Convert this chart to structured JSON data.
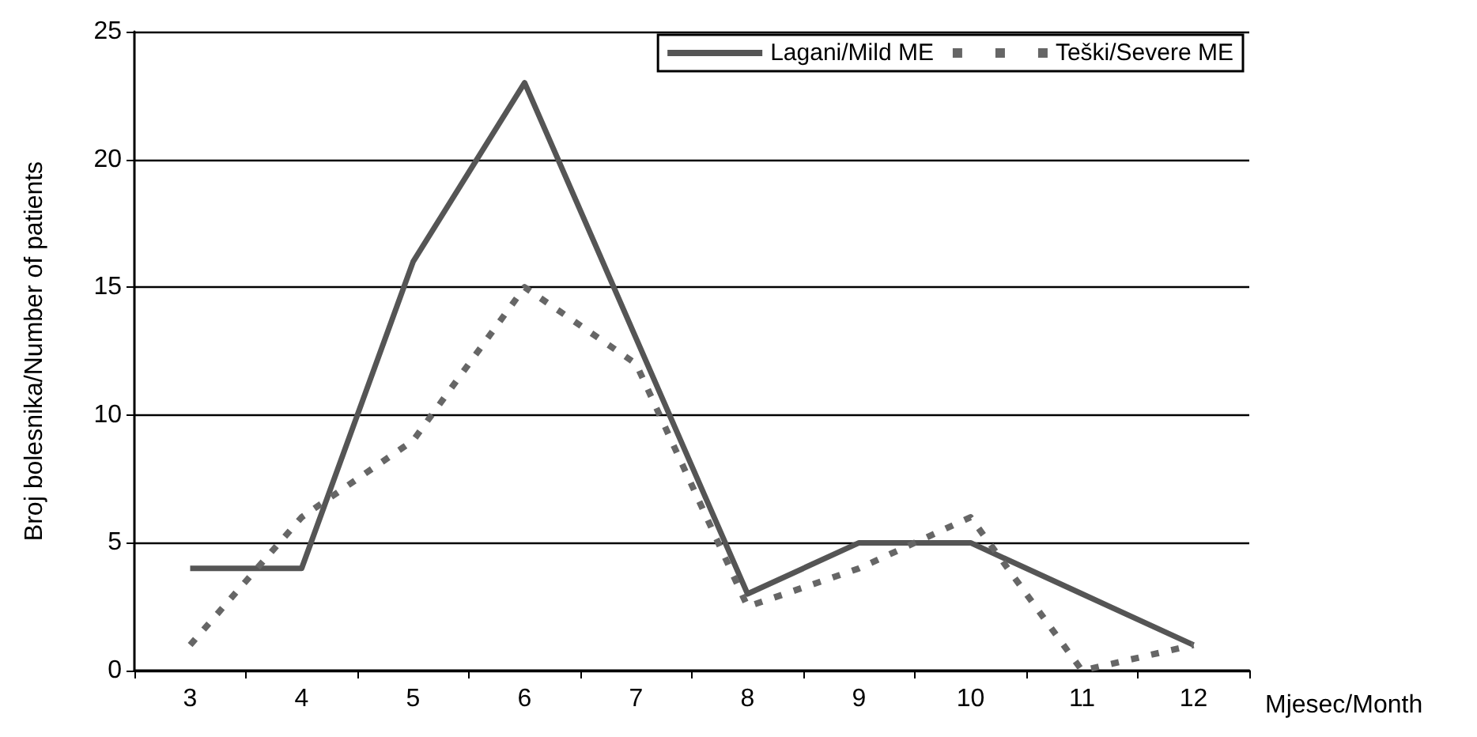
{
  "chart_data": {
    "type": "line",
    "xlabel": "Mjesec/Month",
    "ylabel": "Broj bolesnika/Number of patients",
    "categories": [
      "3",
      "4",
      "5",
      "6",
      "7",
      "8",
      "9",
      "10",
      "11",
      "12"
    ],
    "series": [
      {
        "name": "Lagani/Mild ME",
        "color": "#555555",
        "line_style": "solid",
        "values": [
          4,
          4,
          16,
          23,
          13,
          3,
          5,
          5,
          3,
          1
        ]
      },
      {
        "name": "Teški/Severe ME",
        "color": "#666666",
        "line_style": "dotted",
        "values": [
          1,
          6,
          9,
          15,
          12,
          2.5,
          4,
          6,
          0,
          1
        ]
      }
    ],
    "ylim": [
      0,
      25
    ],
    "yticks": [
      0,
      5,
      10,
      15,
      20,
      25
    ],
    "grid": "y",
    "legend": "top right",
    "marker": "none"
  }
}
